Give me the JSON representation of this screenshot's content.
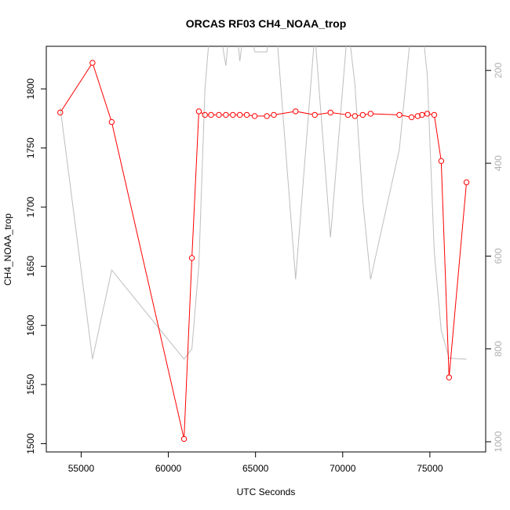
{
  "chart_data": {
    "type": "line",
    "title": "ORCAS RF03 CH4_NOAA_trop",
    "xlabel": "UTC Seconds",
    "ylabel": "CH4_NOAA_trop",
    "xlim": [
      53000,
      78200
    ],
    "ylim": [
      1493,
      1836
    ],
    "y2lim": [
      1022,
      148
    ],
    "y2_reversed": true,
    "grid": false,
    "x_ticks": [
      55000,
      60000,
      65000,
      70000,
      75000
    ],
    "x_tick_labels": [
      "55000",
      "60000",
      "65000",
      "70000",
      "75000"
    ],
    "y_ticks": [
      1500,
      1550,
      1600,
      1650,
      1700,
      1750,
      1800
    ],
    "y_tick_labels": [
      "1500",
      "1550",
      "1600",
      "1650",
      "1700",
      "1750",
      "1800"
    ],
    "y2_ticks": [
      200,
      400,
      600,
      800,
      1000
    ],
    "y2_tick_labels": [
      "200",
      "400",
      "600",
      "800",
      "1000"
    ],
    "series": [
      {
        "axis": "left",
        "color": "#ff0000",
        "marker": "open-circle",
        "x": [
          53800,
          55650,
          56750,
          60900,
          61350,
          61750,
          62100,
          62450,
          62900,
          63300,
          63700,
          64100,
          64500,
          64950,
          65650,
          66050,
          67300,
          68400,
          69300,
          70300,
          70700,
          71150,
          71600,
          73250,
          73950,
          74300,
          74550,
          74850,
          75250,
          75650,
          76100,
          77100
        ],
        "y": [
          1780,
          1822,
          1772,
          1504,
          1657,
          1781,
          1778,
          1778,
          1778,
          1778,
          1778,
          1778,
          1778,
          1777,
          1777,
          1778,
          1781,
          1778,
          1780,
          1778,
          1777,
          1778,
          1779,
          1778,
          1776,
          1777,
          1778,
          1779,
          1778,
          1739,
          1556,
          1721
        ]
      },
      {
        "axis": "right",
        "color": "#bebebe",
        "marker": "none",
        "x": [
          53800,
          55650,
          56750,
          60900,
          61350,
          61750,
          62100,
          62450,
          62900,
          63300,
          63700,
          64100,
          64500,
          64950,
          65650,
          66050,
          67300,
          68400,
          69300,
          70300,
          70700,
          71150,
          71600,
          73250,
          73950,
          74300,
          74550,
          74850,
          75250,
          75650,
          76100,
          77100
        ],
        "y": [
          280,
          822,
          630,
          822,
          800,
          620,
          240,
          80,
          100,
          190,
          20,
          180,
          60,
          160,
          160,
          40,
          650,
          120,
          560,
          100,
          230,
          480,
          650,
          370,
          100,
          80,
          100,
          210,
          590,
          760,
          820,
          822
        ]
      }
    ]
  }
}
